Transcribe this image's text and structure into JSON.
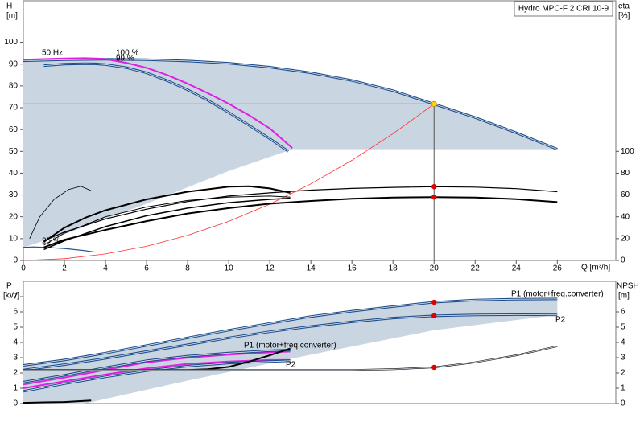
{
  "chart_data": [
    {
      "type": "line",
      "title": "Hydro MPC-F 2 CRI 10-9",
      "x_label": "Q [m³/h]",
      "y_label": "H",
      "y_unit": "[m]",
      "y2_label": "eta",
      "y2_unit": "[%]",
      "xlim": [
        0,
        28.85
      ],
      "xticks": [
        0,
        2,
        4,
        6,
        8,
        10,
        12,
        14,
        16,
        18,
        20,
        22,
        24,
        26
      ],
      "ylim": [
        0,
        119
      ],
      "yticks": [
        0,
        10,
        20,
        30,
        40,
        50,
        60,
        70,
        80,
        90,
        100
      ],
      "y2lim": [
        0,
        238
      ],
      "y2ticks": [
        0,
        20,
        40,
        60,
        80,
        100
      ],
      "areas": [
        {
          "color": "#c9d5e1",
          "x": [
            0,
            2,
            4,
            6,
            8,
            10,
            12,
            14,
            16,
            18,
            20,
            22,
            24,
            26,
            13.1,
            10,
            6,
            2,
            0
          ],
          "values": [
            91.5,
            92,
            92.2,
            92,
            91.4,
            90.4,
            88.6,
            86,
            82.5,
            77.8,
            71.7,
            65.5,
            58.5,
            51,
            51,
            41,
            26,
            12,
            6
          ]
        }
      ],
      "series": [
        {
          "color": "#1f4e8c",
          "double": true,
          "width": 3,
          "x": [
            0,
            2,
            4,
            6,
            8,
            10,
            12,
            14,
            16,
            18,
            20,
            22,
            24,
            26
          ],
          "values": [
            91.5,
            92,
            92.2,
            92,
            91.4,
            90.4,
            88.6,
            86,
            82.5,
            77.8,
            71.7,
            65.5,
            58.5,
            51
          ]
        },
        {
          "color": "#e020e0",
          "width": 2,
          "x": [
            0,
            1,
            2,
            3,
            3.5,
            4,
            5,
            6,
            7,
            8,
            9,
            10,
            11,
            12,
            13.1
          ],
          "values": [
            92,
            92.3,
            92.6,
            92.7,
            92.6,
            92.3,
            90.6,
            88.3,
            85,
            81,
            76.6,
            71.8,
            66.5,
            60.5,
            51.5
          ]
        },
        {
          "color": "#1f4e8c",
          "double": true,
          "width": 3,
          "x": [
            1,
            2,
            3,
            3.5,
            4,
            5,
            6,
            7,
            8,
            9,
            10,
            11,
            12,
            12.9
          ],
          "values": [
            89.3,
            90,
            90.2,
            90.1,
            89.8,
            88.4,
            86,
            82.4,
            78.2,
            73.3,
            67.8,
            61.9,
            55.8,
            50
          ]
        },
        {
          "color": "#ff3030",
          "width": 0.8,
          "x": [
            0,
            2,
            4,
            6,
            8,
            10,
            12,
            14,
            16,
            18,
            20
          ],
          "values": [
            0,
            0.8,
            3,
            6.5,
            11.5,
            17.9,
            25.8,
            35.1,
            45.9,
            58.1,
            71.7
          ]
        },
        {
          "color": "#000000",
          "width": 0.8,
          "x": [
            0.3,
            0.8,
            1.5,
            2.2,
            2.8,
            3.3
          ],
          "values": [
            10,
            20,
            28,
            32.5,
            34,
            32
          ]
        },
        {
          "color": "#1f4e8c",
          "width": 1.2,
          "x": [
            0,
            0.5,
            1,
            2,
            3,
            3.5
          ],
          "values": [
            6,
            6.2,
            6,
            5.5,
            4.5,
            3.8
          ]
        },
        {
          "color": "#000000",
          "width": 1.2,
          "axis": "y2",
          "x": [
            1,
            2,
            4,
            6,
            8,
            10,
            12,
            14,
            16,
            18,
            20,
            22,
            24,
            26
          ],
          "values": [
            18,
            26,
            38,
            47,
            54,
            59,
            62,
            64.5,
            66,
            67,
            67.6,
            67.2,
            65.8,
            63
          ]
        },
        {
          "color": "#000000",
          "width": 2,
          "axis": "y2",
          "x": [
            1,
            2,
            4,
            6,
            8,
            10,
            12,
            14,
            16,
            18,
            20,
            22,
            24,
            26
          ],
          "values": [
            12,
            19,
            28,
            36,
            43,
            48,
            52,
            54.5,
            56.5,
            57.7,
            58.1,
            57.6,
            56.2,
            53.5
          ]
        },
        {
          "color": "#000000",
          "width": 2,
          "axis": "y2",
          "x": [
            1,
            2,
            3,
            4,
            6,
            8,
            10,
            11,
            12,
            13
          ],
          "values": [
            17,
            30,
            39,
            46,
            56,
            63,
            67.6,
            68,
            66,
            62
          ]
        },
        {
          "color": "#000000",
          "width": 1,
          "axis": "y2",
          "x": [
            1,
            2,
            4,
            6,
            8,
            10,
            12,
            13
          ],
          "values": [
            14,
            25,
            40,
            49,
            55,
            58,
            59,
            58
          ]
        },
        {
          "color": "#000000",
          "width": 1.5,
          "axis": "y2",
          "x": [
            1,
            2,
            4,
            6,
            8,
            10,
            12,
            13
          ],
          "values": [
            10,
            18,
            31,
            41,
            48,
            53,
            56,
            57
          ]
        }
      ],
      "markers": [
        {
          "x": 20,
          "y": 71.7,
          "color": "#ffd700",
          "crosshair": true
        },
        {
          "x": 20,
          "y": 67.6,
          "axis": "y2",
          "color": "#e00000"
        },
        {
          "x": 20,
          "y": 58.1,
          "axis": "y2",
          "color": "#e00000"
        }
      ],
      "annotations": [
        "50 Hz",
        "100 %",
        "99 %",
        "25 %"
      ]
    },
    {
      "type": "line",
      "y_label": "P",
      "y_unit": "[kW]",
      "y2_label": "NPSH",
      "y2_unit": "[m]",
      "xlim": [
        0,
        28.85
      ],
      "ylim": [
        0,
        8
      ],
      "yticks": [
        0,
        1,
        2,
        3,
        4,
        5,
        6,
        7
      ],
      "y2lim": [
        0,
        8
      ],
      "y2ticks": [
        0,
        1,
        2,
        3,
        4,
        5,
        6
      ],
      "areas": [
        {
          "color": "#c9d5e1",
          "x": [
            0,
            2,
            4,
            6,
            8,
            10,
            12,
            14,
            16,
            18,
            20,
            22,
            24,
            26,
            26,
            20,
            14,
            8,
            4,
            3,
            0
          ],
          "values": [
            2.5,
            2.85,
            3.3,
            3.8,
            4.3,
            4.8,
            5.25,
            5.7,
            6.05,
            6.35,
            6.63,
            6.78,
            6.83,
            6.85,
            5.8,
            4.8,
            3.2,
            1.5,
            0.3,
            0,
            0
          ]
        }
      ],
      "series": [
        {
          "color": "#1f4e8c",
          "double": true,
          "width": 3,
          "x": [
            0,
            2,
            4,
            6,
            8,
            10,
            12,
            14,
            16,
            18,
            20,
            22,
            24,
            26
          ],
          "values": [
            2.5,
            2.85,
            3.3,
            3.8,
            4.3,
            4.8,
            5.25,
            5.7,
            6.05,
            6.35,
            6.63,
            6.78,
            6.83,
            6.85
          ]
        },
        {
          "color": "#1f4e8c",
          "double": true,
          "width": 3,
          "x": [
            0,
            2,
            4,
            6,
            8,
            10,
            12,
            14,
            16,
            18,
            20,
            22,
            24,
            26
          ],
          "values": [
            2.2,
            2.55,
            2.95,
            3.4,
            3.85,
            4.3,
            4.7,
            5.05,
            5.35,
            5.6,
            5.74,
            5.8,
            5.82,
            5.8
          ]
        },
        {
          "color": "#e020e0",
          "width": 2,
          "x": [
            0,
            2,
            4,
            6,
            8,
            10,
            12,
            13
          ],
          "values": [
            1.25,
            1.7,
            2.2,
            2.7,
            3,
            3.2,
            3.35,
            3.4
          ]
        },
        {
          "color": "#1f4e8c",
          "double": true,
          "width": 3,
          "x": [
            0,
            2,
            4,
            6,
            8,
            10,
            12,
            13
          ],
          "values": [
            1.4,
            1.85,
            2.35,
            2.8,
            3.1,
            3.3,
            3.45,
            3.5
          ]
        },
        {
          "color": "#e020e0",
          "width": 2,
          "x": [
            0,
            2,
            4,
            6,
            8,
            10,
            12,
            13
          ],
          "values": [
            1,
            1.45,
            1.9,
            2.3,
            2.6,
            2.75,
            2.85,
            2.85
          ]
        },
        {
          "color": "#1f4e8c",
          "double": true,
          "width": 3,
          "x": [
            0,
            2,
            4,
            6,
            8,
            10,
            12,
            13
          ],
          "values": [
            0.8,
            1.3,
            1.75,
            2.15,
            2.45,
            2.65,
            2.75,
            2.8
          ]
        },
        {
          "color": "#000000",
          "width": 2,
          "axis": "y2",
          "x": [
            0,
            4,
            8,
            9,
            10,
            11,
            12,
            13
          ],
          "values": [
            2.2,
            2.2,
            2.2,
            2.25,
            2.4,
            2.75,
            3.15,
            3.6
          ]
        },
        {
          "color": "#000000",
          "width": 2,
          "double": true,
          "axis": "y2",
          "x": [
            0,
            4,
            8,
            12,
            16,
            18,
            20,
            22,
            24,
            26
          ],
          "values": [
            2.2,
            2.2,
            2.2,
            2.2,
            2.2,
            2.25,
            2.37,
            2.7,
            3.15,
            3.75
          ]
        },
        {
          "color": "#000000",
          "width": 2,
          "x": [
            0,
            1,
            2,
            3.3
          ],
          "values": [
            0.05,
            0.08,
            0.1,
            0.2
          ]
        }
      ],
      "markers": [
        {
          "x": 20,
          "y": 6.63,
          "color": "#e00000"
        },
        {
          "x": 20,
          "y": 5.74,
          "color": "#e00000"
        },
        {
          "x": 20,
          "y": 2.37,
          "axis": "y2",
          "color": "#e00000"
        }
      ],
      "annotations": [
        "P1 (motor+freq.converter)",
        "P2",
        "P1 (motor+freq.converter)",
        "P2"
      ]
    }
  ]
}
